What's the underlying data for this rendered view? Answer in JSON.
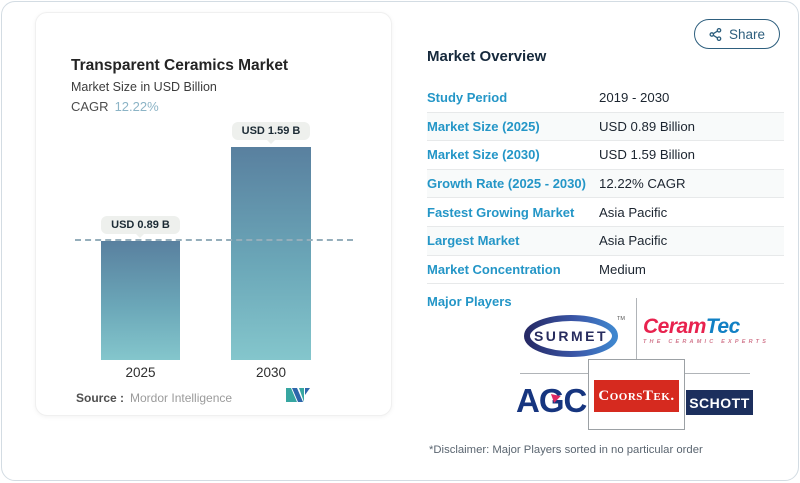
{
  "chart_card": {
    "title": "Transparent Ceramics Market",
    "subtitle": "Market Size in USD Billion",
    "cagr_label": "CAGR",
    "cagr_value": "12.22%",
    "source_label": "Source :",
    "source_brand": "Mordor Intelligence"
  },
  "chart_data": {
    "type": "bar",
    "categories": [
      "2025",
      "2030"
    ],
    "values": [
      0.89,
      1.59
    ],
    "bar_labels": [
      "USD 0.89 B",
      "USD 1.59 B"
    ],
    "title": "Transparent Ceramics Market",
    "ylabel": "Market Size in USD Billion",
    "ylim": [
      0,
      1.8
    ],
    "reference_line": 0.89,
    "grid": false,
    "legend": "none",
    "colors": {
      "bar_gradient_top": "#59809f",
      "bar_gradient_bottom": "#84c6cc",
      "reference_dash": "#95aebb"
    }
  },
  "share_button": {
    "label": "Share",
    "icon": "share-nodes-icon",
    "color": "#2e5f7e"
  },
  "overview": {
    "title": "Market Overview",
    "label_color": "#2496c7",
    "rows": [
      {
        "label": "Study Period",
        "value": "2019 - 2030"
      },
      {
        "label": "Market Size (2025)",
        "value": "USD 0.89 Billion"
      },
      {
        "label": "Market Size (2030)",
        "value": "USD 1.59 Billion"
      },
      {
        "label": "Growth Rate (2025 - 2030)",
        "value": "12.22% CAGR"
      },
      {
        "label": "Fastest Growing Market",
        "value": "Asia Pacific"
      },
      {
        "label": "Largest Market",
        "value": "Asia Pacific"
      },
      {
        "label": "Market Concentration",
        "value": "Medium"
      }
    ],
    "major_players_label": "Major Players",
    "logos": {
      "surmet": {
        "text": "SURMET",
        "tm": "TM"
      },
      "ceramtec": {
        "part1": "Ceram",
        "part2": "Tec",
        "tagline": "THE CERAMIC EXPERTS"
      },
      "agc": {
        "text": "AGC"
      },
      "coorstek": {
        "text": "CoorsTek."
      },
      "schott": {
        "text": "SCHOTT"
      }
    },
    "disclaimer": "*Disclaimer: Major Players sorted in no particular order"
  }
}
